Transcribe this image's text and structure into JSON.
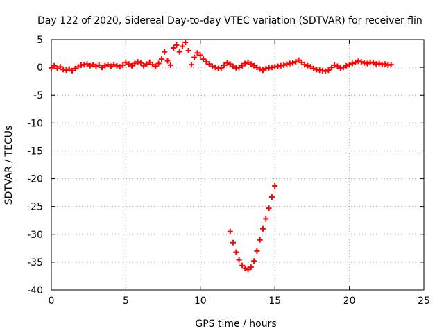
{
  "chart_data": {
    "type": "scatter",
    "title": "Day 122 of 2020, Sidereal Day-to-day VTEC variation (SDTVAR) for receiver flin",
    "xlabel": "GPS time / hours",
    "ylabel": "SDTVAR / TECUs",
    "xlim": [
      0,
      25
    ],
    "ylim": [
      -40,
      5
    ],
    "xticks": [
      "0",
      "5",
      "10",
      "15",
      "20",
      "25"
    ],
    "yticks": [
      "5",
      "0",
      "-5",
      "-10",
      "-15",
      "-20",
      "-25",
      "-30",
      "-35",
      "-40"
    ],
    "grid": true,
    "legend": "none",
    "marker": "plus",
    "colors": {
      "series": "#ff0000",
      "grid": "#a0a0a0",
      "axis": "#000000"
    },
    "series": [
      {
        "points": [
          [
            0.0,
            -0.1
          ],
          [
            0.2,
            0.3
          ],
          [
            0.4,
            -0.2
          ],
          [
            0.6,
            0.1
          ],
          [
            0.8,
            -0.4
          ],
          [
            1.0,
            -0.5
          ],
          [
            1.2,
            -0.3
          ],
          [
            1.4,
            -0.6
          ],
          [
            1.6,
            -0.2
          ],
          [
            1.8,
            0.1
          ],
          [
            2.0,
            0.4
          ],
          [
            2.2,
            0.5
          ],
          [
            2.4,
            0.6
          ],
          [
            2.6,
            0.3
          ],
          [
            2.8,
            0.5
          ],
          [
            3.0,
            0.2
          ],
          [
            3.2,
            0.4
          ],
          [
            3.4,
            0.0
          ],
          [
            3.6,
            0.3
          ],
          [
            3.8,
            0.5
          ],
          [
            4.0,
            0.2
          ],
          [
            4.2,
            0.5
          ],
          [
            4.4,
            0.3
          ],
          [
            4.6,
            0.1
          ],
          [
            4.8,
            0.4
          ],
          [
            5.0,
            0.9
          ],
          [
            5.2,
            0.6
          ],
          [
            5.4,
            0.3
          ],
          [
            5.6,
            0.7
          ],
          [
            5.8,
            1.0
          ],
          [
            6.0,
            0.8
          ],
          [
            6.2,
            0.3
          ],
          [
            6.4,
            0.6
          ],
          [
            6.6,
            0.9
          ],
          [
            6.8,
            0.5
          ],
          [
            7.0,
            0.2
          ],
          [
            7.2,
            0.7
          ],
          [
            7.4,
            1.5
          ],
          [
            7.6,
            2.8
          ],
          [
            7.8,
            1.2
          ],
          [
            8.0,
            0.4
          ],
          [
            8.2,
            3.5
          ],
          [
            8.4,
            4.0
          ],
          [
            8.6,
            2.8
          ],
          [
            8.8,
            3.8
          ],
          [
            9.0,
            4.5
          ],
          [
            9.2,
            3.0
          ],
          [
            9.4,
            0.5
          ],
          [
            9.6,
            1.8
          ],
          [
            9.8,
            2.6
          ],
          [
            10.0,
            2.2
          ],
          [
            10.2,
            1.5
          ],
          [
            10.4,
            1.0
          ],
          [
            10.6,
            0.6
          ],
          [
            10.8,
            0.2
          ],
          [
            11.0,
            0.0
          ],
          [
            11.2,
            -0.2
          ],
          [
            11.4,
            -0.1
          ],
          [
            11.6,
            0.4
          ],
          [
            11.8,
            0.8
          ],
          [
            12.0,
            0.6
          ],
          [
            12.2,
            0.2
          ],
          [
            12.4,
            -0.1
          ],
          [
            12.6,
            0.0
          ],
          [
            12.8,
            0.3
          ],
          [
            13.0,
            0.7
          ],
          [
            13.2,
            0.9
          ],
          [
            13.4,
            0.6
          ],
          [
            13.6,
            0.3
          ],
          [
            13.8,
            0.0
          ],
          [
            14.0,
            -0.3
          ],
          [
            14.2,
            -0.5
          ],
          [
            14.4,
            -0.2
          ],
          [
            14.6,
            -0.1
          ],
          [
            14.8,
            0.0
          ],
          [
            15.0,
            0.1
          ],
          [
            15.2,
            0.2
          ],
          [
            15.4,
            0.3
          ],
          [
            15.6,
            0.4
          ],
          [
            15.8,
            0.6
          ],
          [
            16.0,
            0.7
          ],
          [
            16.2,
            0.8
          ],
          [
            16.4,
            1.0
          ],
          [
            16.6,
            1.3
          ],
          [
            16.8,
            0.9
          ],
          [
            17.0,
            0.5
          ],
          [
            17.2,
            0.3
          ],
          [
            17.4,
            0.1
          ],
          [
            17.6,
            -0.2
          ],
          [
            17.8,
            -0.4
          ],
          [
            18.0,
            -0.5
          ],
          [
            18.2,
            -0.6
          ],
          [
            18.4,
            -0.7
          ],
          [
            18.6,
            -0.5
          ],
          [
            18.8,
            0.0
          ],
          [
            19.0,
            0.4
          ],
          [
            19.2,
            0.2
          ],
          [
            19.4,
            -0.1
          ],
          [
            19.6,
            0.0
          ],
          [
            19.8,
            0.3
          ],
          [
            20.0,
            0.5
          ],
          [
            20.2,
            0.7
          ],
          [
            20.4,
            0.9
          ],
          [
            20.6,
            1.1
          ],
          [
            20.8,
            1.0
          ],
          [
            21.0,
            0.8
          ],
          [
            21.2,
            0.7
          ],
          [
            21.4,
            0.9
          ],
          [
            21.6,
            0.8
          ],
          [
            21.8,
            0.6
          ],
          [
            22.0,
            0.7
          ],
          [
            22.2,
            0.5
          ],
          [
            22.4,
            0.6
          ],
          [
            22.6,
            0.4
          ],
          [
            22.8,
            0.5
          ],
          [
            12.0,
            -29.5
          ],
          [
            12.2,
            -31.5
          ],
          [
            12.4,
            -33.2
          ],
          [
            12.6,
            -34.6
          ],
          [
            12.8,
            -35.6
          ],
          [
            13.0,
            -36.1
          ],
          [
            13.2,
            -36.3
          ],
          [
            13.4,
            -35.9
          ],
          [
            13.6,
            -34.8
          ],
          [
            13.8,
            -33.0
          ],
          [
            14.0,
            -31.0
          ],
          [
            14.2,
            -29.0
          ],
          [
            14.4,
            -27.2
          ],
          [
            14.6,
            -25.3
          ],
          [
            14.8,
            -23.3
          ],
          [
            15.0,
            -21.3
          ]
        ]
      }
    ]
  }
}
